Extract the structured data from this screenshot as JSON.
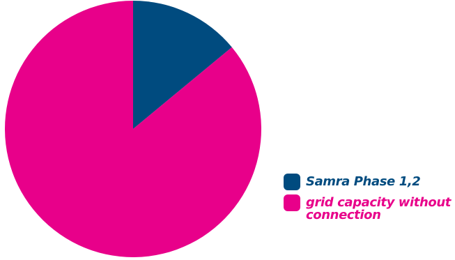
{
  "chart_data": {
    "type": "pie",
    "title": "",
    "slices": [
      {
        "label": "Samra Phase 1,2",
        "value": 14,
        "color": "#004b7f"
      },
      {
        "label": "grid capacity without connection",
        "value": 86,
        "color": "#e8008a"
      }
    ],
    "legend": {
      "placement": "bottom-right",
      "entries": [
        {
          "label": "Samra Phase 1,2",
          "color": "#004b7f"
        },
        {
          "label": "grid capacity without connection",
          "color": "#e8008a"
        }
      ]
    }
  }
}
